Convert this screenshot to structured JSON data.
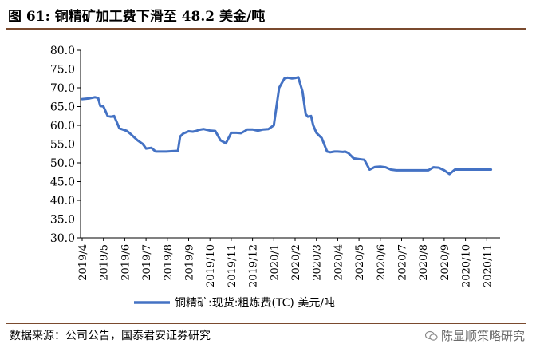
{
  "title": "图 61:  铜精矿加工费下滑至 48.2 美金/吨",
  "source": "数据来源：公司公告，国泰君安证券研究",
  "watermark": "陈显顺策略研究",
  "watermark_icon": "wechat-icon",
  "colors": {
    "line": "#4472c4",
    "rule": "#7a4a2e"
  },
  "chart_data": {
    "type": "line",
    "title": "",
    "xlabel": "",
    "ylabel": "",
    "ylim": [
      30,
      80
    ],
    "y_ticks": [
      "80.0",
      "75.0",
      "70.0",
      "65.0",
      "60.0",
      "55.0",
      "50.0",
      "45.0",
      "40.0",
      "35.0",
      "30.0"
    ],
    "x_ticks": [
      "2019/4",
      "2019/5",
      "2019/6",
      "2019/7",
      "2019/8",
      "2019/9",
      "2019/10",
      "2019/11",
      "2019/12",
      "2020/1",
      "2020/2",
      "2020/3",
      "2020/4",
      "2020/5",
      "2020/6",
      "2020/7",
      "2020/8",
      "2020/9",
      "2020/10",
      "2020/11"
    ],
    "grid": false,
    "legend": "bottom",
    "series": [
      {
        "name": "铜精矿:现货:粗炼费(TC)  美元/吨",
        "x_index": [
          0.0,
          0.35,
          0.6,
          0.75,
          0.85,
          1.0,
          1.2,
          1.35,
          1.5,
          1.75,
          1.9,
          2.1,
          2.25,
          2.6,
          2.85,
          3.0,
          3.25,
          3.45,
          3.65,
          3.95,
          4.25,
          4.5,
          4.6,
          4.75,
          5.0,
          5.2,
          5.35,
          5.5,
          5.7,
          5.85,
          6.0,
          6.25,
          6.5,
          6.75,
          7.0,
          7.25,
          7.45,
          7.65,
          7.75,
          8.0,
          8.15,
          8.25,
          8.35,
          8.5,
          8.75,
          9.0,
          9.25,
          9.5,
          9.65,
          9.85,
          10.0,
          10.15,
          10.35,
          10.5,
          10.6,
          10.75,
          10.85,
          11.0,
          11.25,
          11.5,
          11.65,
          11.85,
          12.0,
          12.25,
          12.35,
          12.5,
          12.75,
          13.0,
          13.25,
          13.5,
          13.75,
          14.0,
          14.25,
          14.5,
          14.75,
          15.0,
          15.25,
          15.5,
          15.75,
          16.0,
          16.25,
          16.5,
          16.75,
          17.0,
          17.25,
          17.5,
          17.75,
          18.0,
          18.25,
          18.5,
          18.75,
          19.0,
          19.2
        ],
        "values": [
          67,
          67.2,
          67.5,
          67.3,
          65.2,
          65,
          62.5,
          62.3,
          62.5,
          59.2,
          58.9,
          58.5,
          57.8,
          56,
          55,
          53.8,
          54,
          53,
          53,
          53,
          53.1,
          53.2,
          57,
          57.8,
          58.4,
          58.3,
          58.5,
          58.8,
          59,
          58.8,
          58.6,
          58.5,
          56,
          55.2,
          58,
          58,
          57.9,
          58.5,
          58.9,
          58.9,
          58.7,
          58.6,
          58.7,
          58.9,
          59,
          60,
          70,
          72.5,
          72.7,
          72.5,
          72.6,
          72.8,
          69,
          63,
          62.3,
          62.5,
          60,
          58,
          56.6,
          53,
          52.8,
          53,
          53,
          52.9,
          53,
          52.6,
          51.2,
          51,
          50.8,
          48.2,
          48.9,
          49,
          48.8,
          48.2,
          48,
          48,
          48,
          48,
          48,
          48,
          48,
          48.8,
          48.7,
          48,
          47,
          48.2,
          48.2,
          48.2,
          48.2,
          48.2,
          48.2,
          48.2,
          48.2
        ]
      }
    ]
  }
}
